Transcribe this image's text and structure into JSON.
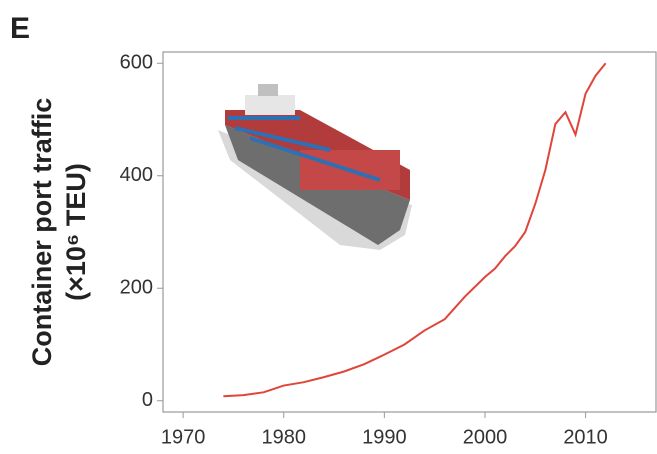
{
  "chart_data": {
    "type": "line",
    "panel_label": "E",
    "ylabel": [
      "Container port traffic",
      "(×10⁶ TEU)"
    ],
    "x": [
      1974,
      1976,
      1978,
      1980,
      1982,
      1984,
      1986,
      1988,
      1990,
      1992,
      1994,
      1996,
      1998,
      2000,
      2001,
      2002,
      2003,
      2004,
      2005,
      2006,
      2007,
      2008,
      2009,
      2010,
      2011,
      2012
    ],
    "series": [
      {
        "name": "Container port traffic",
        "color": "#e0453a",
        "values": [
          8,
          10,
          15,
          27,
          33,
          42,
          52,
          65,
          82,
          100,
          125,
          145,
          185,
          220,
          235,
          257,
          275,
          300,
          350,
          410,
          492,
          513,
          473,
          546,
          578,
          600
        ]
      }
    ],
    "xlim": [
      1968,
      2017
    ],
    "ylim": [
      -20,
      620
    ],
    "xticks": [
      1970,
      1980,
      1990,
      2000,
      2010
    ],
    "yticks": [
      0,
      200,
      400,
      600
    ]
  }
}
